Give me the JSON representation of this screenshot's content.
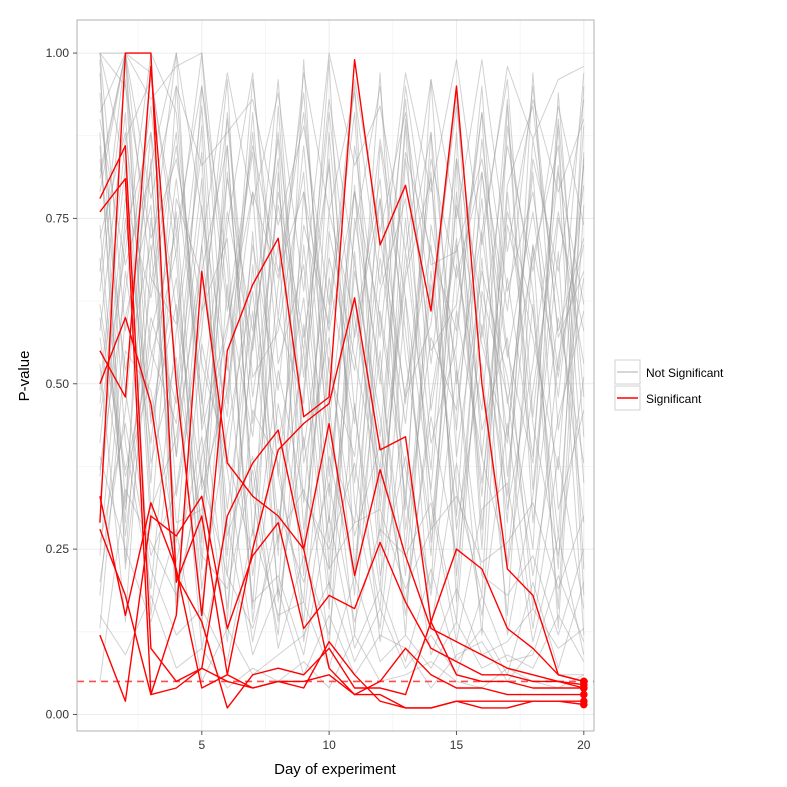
{
  "chart_data": {
    "type": "line",
    "title": "",
    "xlabel": "Day of experiment",
    "ylabel": "P-value",
    "xlim": [
      0.1,
      20.4
    ],
    "ylim": [
      -0.025,
      1.05
    ],
    "x_ticks": [
      5,
      10,
      15,
      20
    ],
    "y_ticks": [
      0.0,
      0.25,
      0.5,
      0.75,
      1.0
    ],
    "x_tick_labels": [
      "5",
      "10",
      "15",
      "20"
    ],
    "y_tick_labels": [
      "0.00",
      "0.25",
      "0.50",
      "0.75",
      "1.00"
    ],
    "threshold": 0.05,
    "grid": true,
    "legend_position": "right",
    "legend": [
      {
        "label": "Not Significant",
        "color": "#c8c8c8"
      },
      {
        "label": "Significant",
        "color": "#ff0000"
      }
    ],
    "colors": {
      "significant": "#ff0000",
      "not_significant": "#9a9a9a",
      "threshold_line": "#ff4d4d",
      "panel_border": "#b0b0b0",
      "grid": "#ececec"
    },
    "significant_series": [
      {
        "values": [
          0.29,
          1.0,
          1.0,
          0.2,
          0.3,
          0.06,
          0.04,
          0.05,
          0.04,
          0.11,
          0.06,
          0.02,
          0.01,
          0.01,
          0.02,
          0.01,
          0.01,
          0.02,
          0.02,
          0.015
        ]
      },
      {
        "values": [
          0.12,
          0.02,
          0.3,
          0.27,
          0.33,
          0.13,
          0.24,
          0.29,
          0.13,
          0.18,
          0.16,
          0.26,
          0.17,
          0.1,
          0.08,
          0.06,
          0.06,
          0.05,
          0.05,
          0.04
        ]
      },
      {
        "values": [
          0.76,
          0.81,
          0.03,
          0.15,
          0.67,
          0.38,
          0.33,
          0.3,
          0.25,
          0.44,
          0.21,
          0.37,
          0.24,
          0.13,
          0.11,
          0.09,
          0.07,
          0.06,
          0.05,
          0.045
        ]
      },
      {
        "values": [
          0.55,
          0.48,
          0.98,
          0.5,
          0.15,
          0.55,
          0.65,
          0.72,
          0.45,
          0.48,
          0.99,
          0.71,
          0.8,
          0.61,
          0.95,
          0.5,
          0.22,
          0.18,
          0.06,
          0.05
        ]
      },
      {
        "values": [
          0.33,
          0.15,
          0.32,
          0.22,
          0.04,
          0.06,
          0.25,
          0.4,
          0.44,
          0.47,
          0.63,
          0.4,
          0.42,
          0.14,
          0.06,
          0.05,
          0.05,
          0.04,
          0.04,
          0.04
        ]
      },
      {
        "values": [
          0.78,
          0.86,
          0.1,
          0.05,
          0.07,
          0.05,
          0.04,
          0.05,
          0.05,
          0.06,
          0.03,
          0.03,
          0.01,
          0.01,
          0.02,
          0.02,
          0.02,
          0.02,
          0.02,
          0.02
        ]
      },
      {
        "values": [
          0.5,
          0.6,
          0.47,
          0.21,
          0.14,
          0.01,
          0.06,
          0.07,
          0.06,
          0.1,
          0.04,
          0.04,
          0.03,
          0.14,
          0.25,
          0.22,
          0.13,
          0.1,
          0.06,
          0.05
        ]
      },
      {
        "values": [
          0.28,
          0.18,
          0.03,
          0.04,
          0.07,
          0.3,
          0.38,
          0.43,
          0.25,
          0.07,
          0.03,
          0.05,
          0.1,
          0.06,
          0.04,
          0.04,
          0.03,
          0.03,
          0.03,
          0.03
        ]
      }
    ],
    "not_significant_series": [
      {
        "values": [
          1.0,
          0.95,
          0.72,
          0.84,
          0.61,
          0.9,
          0.48,
          0.77,
          0.55,
          0.93,
          0.68,
          0.42,
          0.85,
          0.7,
          0.58,
          0.91,
          0.64,
          0.79,
          0.52,
          0.97
        ]
      },
      {
        "values": [
          0.82,
          1.0,
          0.66,
          0.59,
          0.92,
          0.38,
          0.71,
          0.49,
          0.86,
          0.44,
          0.79,
          0.6,
          0.33,
          0.88,
          0.5,
          0.73,
          0.96,
          0.45,
          0.82,
          0.62
        ]
      },
      {
        "values": [
          0.45,
          0.7,
          1.0,
          0.91,
          0.47,
          0.81,
          0.58,
          0.96,
          0.4,
          0.69,
          0.52,
          0.87,
          0.63,
          0.34,
          0.77,
          0.56,
          0.41,
          0.84,
          0.67,
          0.93
        ]
      },
      {
        "values": [
          1.0,
          0.58,
          0.83,
          1.0,
          0.76,
          0.52,
          0.88,
          0.36,
          0.74,
          0.59,
          0.95,
          0.31,
          0.66,
          0.81,
          0.43,
          0.87,
          0.55,
          0.38,
          0.9,
          0.48
        ]
      },
      {
        "values": [
          0.62,
          0.37,
          0.54,
          0.7,
          1.0,
          0.63,
          0.42,
          0.79,
          0.57,
          0.83,
          0.35,
          0.72,
          0.48,
          0.59,
          0.94,
          0.39,
          0.76,
          0.61,
          0.27,
          0.84
        ]
      },
      {
        "values": [
          0.91,
          1.0,
          0.44,
          0.62,
          0.35,
          0.74,
          0.97,
          0.53,
          0.68,
          0.29,
          0.86,
          0.57,
          0.93,
          0.46,
          0.71,
          0.33,
          0.8,
          0.92,
          0.58,
          0.72
        ]
      },
      {
        "values": [
          0.2,
          0.46,
          0.88,
          0.33,
          0.58,
          0.96,
          0.27,
          0.65,
          0.91,
          0.52,
          0.39,
          0.78,
          0.25,
          0.67,
          0.3,
          0.82,
          0.47,
          0.69,
          0.86,
          0.35
        ]
      },
      {
        "values": [
          0.74,
          0.27,
          0.6,
          0.47,
          0.81,
          0.21,
          0.56,
          0.87,
          0.32,
          0.76,
          0.6,
          0.37,
          0.9,
          0.53,
          0.84,
          0.62,
          0.29,
          0.97,
          0.43,
          0.66
        ]
      },
      {
        "values": [
          1.0,
          0.83,
          0.35,
          0.95,
          0.43,
          0.59,
          0.79,
          0.24,
          0.99,
          0.36,
          0.73,
          0.95,
          0.54,
          0.28,
          0.68,
          0.46,
          0.93,
          0.34,
          0.75,
          0.58
        ]
      },
      {
        "values": [
          0.37,
          0.64,
          0.92,
          0.52,
          0.29,
          0.86,
          0.33,
          0.6,
          0.47,
          0.99,
          0.22,
          0.64,
          0.78,
          0.41,
          0.56,
          0.95,
          0.36,
          0.71,
          0.51,
          0.8
        ]
      },
      {
        "values": [
          0.58,
          0.91,
          0.28,
          0.78,
          0.66,
          0.45,
          0.91,
          0.41,
          0.63,
          0.26,
          0.58,
          0.81,
          0.31,
          0.96,
          0.39,
          0.67,
          0.51,
          0.25,
          0.94,
          0.42
        ]
      },
      {
        "values": [
          0.88,
          0.23,
          0.75,
          0.39,
          0.95,
          0.68,
          0.16,
          0.82,
          0.28,
          0.61,
          0.91,
          0.27,
          0.7,
          0.37,
          0.88,
          0.28,
          0.74,
          0.57,
          0.37,
          0.89
        ]
      },
      {
        "values": [
          0.13,
          0.55,
          0.49,
          0.26,
          0.71,
          0.31,
          0.61,
          0.18,
          0.79,
          0.41,
          0.29,
          0.69,
          0.44,
          0.82,
          0.21,
          0.59,
          0.33,
          0.87,
          0.63,
          0.29
        ]
      },
      {
        "values": [
          0.67,
          1.0,
          0.97,
          0.69,
          0.22,
          0.82,
          0.44,
          0.71,
          0.21,
          0.88,
          0.46,
          0.19,
          0.84,
          0.55,
          0.62,
          0.91,
          0.22,
          0.49,
          0.76,
          0.53
        ]
      },
      {
        "values": [
          0.97,
          0.41,
          0.19,
          0.58,
          0.85,
          0.14,
          0.68,
          0.29,
          0.55,
          0.16,
          0.75,
          0.52,
          0.21,
          0.65,
          0.34,
          0.18,
          0.89,
          0.64,
          0.22,
          0.95
        ]
      },
      {
        "values": [
          0.41,
          0.78,
          0.63,
          0.86,
          0.53,
          0.39,
          0.24,
          0.92,
          0.38,
          0.57,
          0.18,
          0.86,
          0.58,
          0.24,
          0.79,
          0.43,
          0.57,
          0.16,
          0.54,
          0.71
        ]
      },
      {
        "values": [
          0.86,
          0.32,
          0.84,
          0.15,
          0.39,
          0.58,
          0.85,
          0.36,
          0.17,
          0.73,
          0.54,
          0.35,
          0.67,
          0.88,
          0.17,
          0.73,
          0.42,
          0.82,
          0.31,
          0.46
        ]
      },
      {
        "values": [
          0.24,
          0.67,
          0.41,
          0.76,
          0.26,
          0.91,
          0.51,
          0.58,
          0.82,
          0.22,
          0.67,
          0.45,
          0.15,
          0.48,
          0.72,
          0.35,
          0.66,
          0.39,
          0.89,
          0.22
        ]
      },
      {
        "values": [
          0.72,
          0.88,
          0.55,
          0.44,
          0.77,
          0.27,
          0.39,
          0.14,
          0.49,
          0.84,
          0.32,
          0.13,
          0.49,
          0.71,
          0.28,
          0.53,
          0.15,
          0.71,
          0.13,
          0.77
        ]
      },
      {
        "values": [
          0.53,
          0.14,
          0.69,
          1.0,
          0.34,
          0.49,
          0.79,
          0.66,
          0.94,
          0.47,
          0.12,
          0.61,
          0.37,
          0.19,
          0.84,
          0.25,
          0.92,
          0.29,
          0.6,
          0.38
        ]
      },
      {
        "values": [
          0.94,
          0.49,
          0.24,
          0.34,
          0.61,
          0.72,
          0.14,
          0.47,
          0.26,
          0.66,
          0.44,
          0.97,
          0.28,
          0.57,
          0.46,
          0.78,
          0.31,
          0.53,
          0.83,
          0.18
        ]
      },
      {
        "values": [
          0.32,
          0.73,
          0.88,
          0.61,
          0.19,
          0.43,
          0.64,
          0.26,
          0.71,
          0.33,
          0.8,
          0.24,
          0.75,
          0.33,
          0.14,
          0.64,
          0.48,
          0.21,
          0.45,
          0.61
        ]
      },
      {
        "values": [
          0.6,
          0.36,
          0.51,
          0.81,
          0.48,
          0.16,
          0.57,
          0.84,
          0.11,
          0.39,
          0.21,
          0.55,
          0.12,
          0.74,
          0.53,
          0.12,
          0.79,
          0.44,
          0.24,
          0.51
        ]
      },
      {
        "values": [
          0.79,
          1.0,
          0.31,
          0.42,
          0.67,
          0.86,
          0.33,
          0.12,
          0.59,
          0.19,
          0.63,
          0.33,
          0.89,
          0.26,
          0.61,
          0.39,
          0.23,
          0.62,
          0.16,
          0.85
        ]
      },
      {
        "values": [
          0.18,
          0.6,
          0.77,
          0.23,
          0.42,
          0.11,
          0.46,
          0.38,
          0.14,
          0.54,
          0.27,
          0.41,
          0.17,
          0.45,
          0.24,
          0.69,
          0.12,
          0.33,
          0.7,
          0.12
        ]
      },
      {
        "values": [
          0.99,
          0.22,
          0.58,
          0.73,
          0.13,
          0.65,
          0.21,
          0.52,
          0.33,
          0.25,
          0.38,
          0.16,
          0.63,
          0.13,
          0.38,
          0.15,
          0.44,
          0.13,
          0.39,
          0.16
        ]
      },
      {
        "values": [
          0.47,
          0.83,
          0.15,
          0.49,
          0.89,
          0.24,
          0.73,
          0.17,
          0.42,
          0.1,
          0.7,
          0.21,
          0.39,
          0.18,
          0.52,
          0.21,
          0.18,
          0.24,
          0.12,
          0.25
        ]
      },
      {
        "values": [
          0.69,
          0.29,
          1.0,
          0.17,
          0.56,
          0.37,
          0.11,
          0.31,
          0.2,
          0.35,
          0.14,
          0.28,
          0.24,
          0.32,
          0.11,
          0.31,
          0.35,
          0.11,
          0.27,
          0.09
        ]
      },
      {
        "values": [
          0.36,
          0.75,
          0.45,
          0.66,
          0.24,
          0.19,
          0.37,
          0.1,
          0.24,
          0.12,
          0.47,
          0.11,
          0.33,
          0.09,
          0.19,
          0.09,
          0.11,
          0.16,
          0.1,
          0.13
        ]
      },
      {
        "values": [
          0.84,
          0.52,
          0.71,
          0.29,
          0.31,
          0.54,
          0.17,
          0.21,
          0.09,
          0.3,
          0.1,
          0.19,
          0.08,
          0.22,
          0.08,
          0.13,
          0.06,
          0.2,
          0.07,
          0.2
        ]
      },
      {
        "values": [
          0.26,
          0.44,
          0.22,
          0.12,
          0.16,
          0.08,
          0.28,
          0.15,
          0.17,
          0.07,
          0.21,
          0.08,
          0.12,
          0.07,
          0.14,
          0.07,
          0.09,
          0.07,
          0.15,
          0.08
        ]
      },
      {
        "values": [
          0.64,
          0.96,
          0.38,
          0.54,
          0.1,
          0.29,
          0.09,
          0.19,
          0.06,
          0.15,
          0.06,
          0.12,
          0.1,
          0.04,
          0.09,
          0.11,
          0.05,
          0.1,
          0.06,
          0.06
        ]
      },
      {
        "values": [
          1.0,
          1.0,
          0.93,
          0.98,
          1.0,
          0.47,
          0.96,
          0.6,
          0.97,
          0.76,
          0.94,
          0.65,
          0.97,
          0.79,
          0.99,
          0.71,
          0.98,
          0.87,
          0.96,
          0.98
        ]
      },
      {
        "values": [
          0.9,
          0.68,
          0.82,
          0.39,
          0.71,
          0.97,
          0.77,
          0.94,
          0.64,
          1.0,
          0.83,
          0.92,
          0.7,
          0.96,
          0.75,
          0.99,
          0.7,
          0.93,
          0.79,
          0.9
        ]
      },
      {
        "values": [
          0.15,
          0.09,
          0.18,
          0.07,
          0.1,
          0.04,
          0.07,
          0.05,
          0.08,
          0.04,
          0.12,
          0.05,
          0.06,
          0.08,
          0.05,
          0.04,
          0.07,
          0.05,
          0.04,
          0.06
        ]
      },
      {
        "values": [
          0.39,
          0.25,
          0.14,
          0.28,
          0.05,
          0.13,
          0.06,
          0.09,
          0.12,
          0.2,
          0.08,
          0.16,
          0.07,
          0.12,
          0.06,
          0.18,
          0.08,
          0.09,
          0.21,
          0.11
        ]
      },
      {
        "values": [
          0.57,
          0.31,
          0.65,
          0.88,
          0.44,
          0.76,
          0.55,
          0.88,
          0.51,
          0.91,
          0.57,
          0.78,
          0.47,
          0.84,
          0.66,
          0.82,
          0.54,
          0.76,
          0.48,
          0.83
        ]
      },
      {
        "values": [
          0.81,
          1.0,
          0.78,
          0.95,
          0.83,
          0.88,
          0.93,
          0.74,
          0.89,
          0.62,
          0.96,
          0.73,
          0.91,
          0.62,
          0.92,
          0.57,
          0.86,
          0.67,
          0.92,
          0.74
        ]
      },
      {
        "values": [
          0.49,
          0.87,
          0.96,
          0.73,
          0.95,
          0.61,
          0.86,
          0.67,
          0.79,
          0.58,
          0.79,
          0.5,
          0.95,
          0.68,
          0.7,
          0.84,
          0.61,
          0.95,
          0.57,
          0.67
        ]
      },
      {
        "values": [
          0.05,
          0.34,
          0.26,
          0.18,
          0.36,
          0.21,
          0.13,
          0.27,
          0.34,
          0.22,
          0.29,
          0.31,
          0.19,
          0.28,
          0.33,
          0.23,
          0.26,
          0.32,
          0.19,
          0.3
        ]
      }
    ]
  }
}
